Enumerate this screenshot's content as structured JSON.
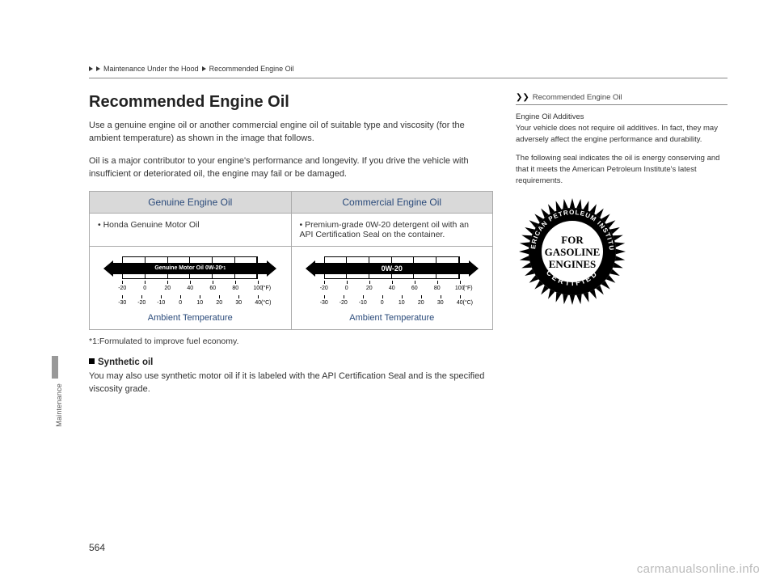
{
  "breadcrumb": {
    "level1": "Maintenance Under the Hood",
    "level2": "Recommended Engine Oil"
  },
  "side_tab_label": "Maintenance",
  "page_number": "564",
  "watermark": "carmanualsonline.info",
  "main": {
    "title": "Recommended Engine Oil",
    "para1": "Use a genuine engine oil or another commercial engine oil of suitable type and viscosity (for the ambient temperature) as shown in the image that follows.",
    "para2": "Oil is a major contributor to your engine's performance and longevity. If you drive the vehicle with insufficient or deteriorated oil, the engine may fail or be damaged.",
    "table": {
      "header_left": "Genuine Engine Oil",
      "header_right": "Commercial Engine Oil",
      "cell_left": "Honda Genuine Motor Oil",
      "cell_right": "Premium-grade 0W-20 detergent oil with an API Certification Seal on the container."
    },
    "chart_left": {
      "band_label": "Genuine Motor Oil 0W-20",
      "band_sup": "*1",
      "caption": "Ambient Temperature",
      "f_ticks": [
        "-20",
        "0",
        "20",
        "40",
        "60",
        "80",
        "100"
      ],
      "f_unit": "(°F)",
      "c_ticks": [
        "-30",
        "-20",
        "-10",
        "0",
        "10",
        "20",
        "30",
        "40"
      ],
      "c_unit": "(°C)"
    },
    "chart_right": {
      "band_label": "0W-20",
      "band_sup": "",
      "caption": "Ambient Temperature",
      "f_ticks": [
        "-20",
        "0",
        "20",
        "40",
        "60",
        "80",
        "100"
      ],
      "f_unit": "(°F)",
      "c_ticks": [
        "-30",
        "-20",
        "-10",
        "0",
        "10",
        "20",
        "30",
        "40"
      ],
      "c_unit": "(°C)"
    },
    "footnote": "*1:Formulated to improve fuel economy.",
    "sub_heading": "Synthetic oil",
    "sub_para": "You may also use synthetic motor oil if it is labeled with the API Certification Seal and is the specified viscosity grade."
  },
  "sidebar": {
    "title": "Recommended Engine Oil",
    "p1_heading": "Engine Oil Additives",
    "p1": "Your vehicle does not require oil additives. In fact, they may adversely affect the engine performance and durability.",
    "p2": "The following seal indicates the oil is energy conserving and that it meets the American Petroleum Institute's latest requirements.",
    "seal": {
      "outer_text_top": "AMERICAN PETROLEUM INSTITUTE",
      "outer_text_bottom": "CERTIFIED",
      "line1": "FOR",
      "line2": "GASOLINE",
      "line3": "ENGINES"
    }
  }
}
